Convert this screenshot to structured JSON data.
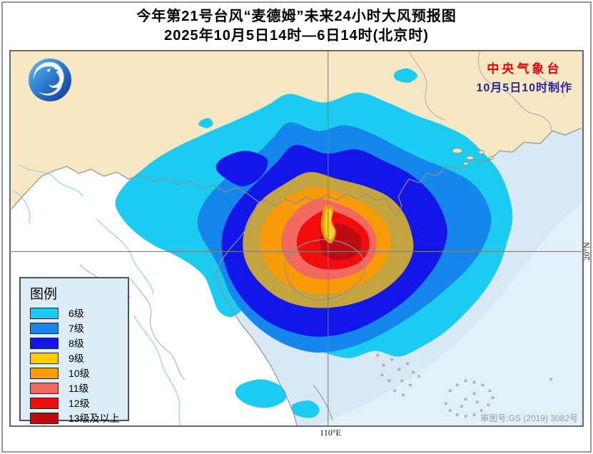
{
  "title": {
    "line1": "今年第21号台风“麦德姆”未来24小时大风预报图",
    "line2": "2025年10月5日14时—6日14时(北京时)"
  },
  "map": {
    "agency": "中央气象台",
    "issued": "10月5日10时制作",
    "approval": "审图号:GS (2019) 3082号",
    "lon_label": "110°E",
    "lat_label": "20°N"
  },
  "legend": {
    "title": "图例",
    "items": [
      {
        "label": "6级",
        "color": "#1bcbf0"
      },
      {
        "label": "7级",
        "color": "#1486ec"
      },
      {
        "label": "8级",
        "color": "#1216e8"
      },
      {
        "label": "9级",
        "color": "#ffcb00"
      },
      {
        "label": "10级",
        "color": "#f89b06"
      },
      {
        "label": "11级",
        "color": "#f4695f"
      },
      {
        "label": "12级",
        "color": "#f20d0d"
      },
      {
        "label": "13级及以上",
        "color": "#be0a10"
      }
    ]
  },
  "colors": {
    "agency_text": "#e60000",
    "issued_text": "#2626a0",
    "sea": "#d8e9f5",
    "sea_light": "#e2f0fa",
    "land_china": "#f7e7c3",
    "land_other": "#ffffff",
    "ring9_map": "#c3a43e",
    "eye": "#ffd02a"
  }
}
